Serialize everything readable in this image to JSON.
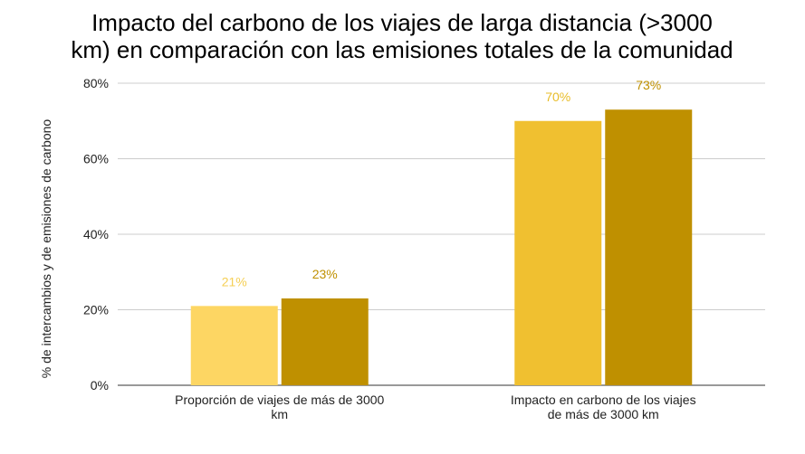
{
  "chart_data": {
    "type": "bar",
    "title": "Impacto del carbono de los viajes de larga distancia (>3000 km) en comparación con las emisiones totales de la comunidad",
    "title_lines": [
      "Impacto del carbono de los viajes de larga distancia (>3000",
      "km) en comparación con las emisiones totales de la comunidad"
    ],
    "xlabel": "",
    "ylabel": "% de intercambios y de emisiones de carbono",
    "ylim": [
      0,
      80
    ],
    "yticks": [
      0,
      20,
      40,
      60,
      80
    ],
    "ytick_labels": [
      "0%",
      "20%",
      "40%",
      "60%",
      "80%"
    ],
    "grid": true,
    "legend": "none",
    "categories": [
      "Proporción de viajes de más de 3000 km",
      "Impacto en carbono de los viajes de más de 3000 km"
    ],
    "category_lines": [
      [
        "Proporción de viajes de más de 3000",
        "km"
      ],
      [
        "Impacto en carbono de los viajes",
        "de más de 3000 km"
      ]
    ],
    "series": [
      {
        "values": [
          21,
          70
        ],
        "labels": [
          "21%",
          "70%"
        ],
        "colors": [
          "#fdd663",
          "#f0c030"
        ],
        "label_colors": [
          "#f5cf55",
          "#e8bc28"
        ]
      },
      {
        "values": [
          23,
          73
        ],
        "labels": [
          "23%",
          "73%"
        ],
        "colors": [
          "#bf9000",
          "#bf9000"
        ],
        "label_colors": [
          "#bf9000",
          "#bf9000"
        ]
      }
    ],
    "colors": {
      "grid": "#cccccc",
      "axis": "#333333"
    }
  }
}
